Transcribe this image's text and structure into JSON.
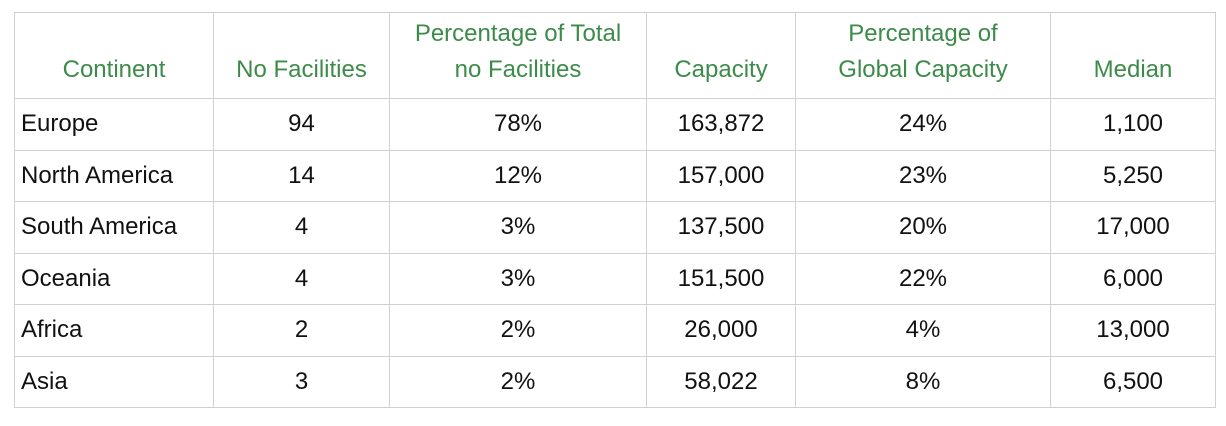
{
  "table": {
    "headers": [
      "Continent",
      "No Facilities",
      "Percentage of Total no Facilities",
      "Capacity",
      "Percentage of Global Capacity",
      "Median"
    ],
    "rows": [
      [
        "Europe",
        "94",
        "78%",
        "163,872",
        "24%",
        "1,100"
      ],
      [
        "North America",
        "14",
        "12%",
        "157,000",
        "23%",
        "5,250"
      ],
      [
        "South America",
        "4",
        "3%",
        "137,500",
        "20%",
        "17,000"
      ],
      [
        "Oceania",
        "4",
        "3%",
        "151,500",
        "22%",
        "6,000"
      ],
      [
        "Africa",
        "2",
        "2%",
        "26,000",
        "4%",
        "13,000"
      ],
      [
        "Asia",
        "3",
        "2%",
        "58,022",
        "8%",
        "6,500"
      ]
    ]
  }
}
